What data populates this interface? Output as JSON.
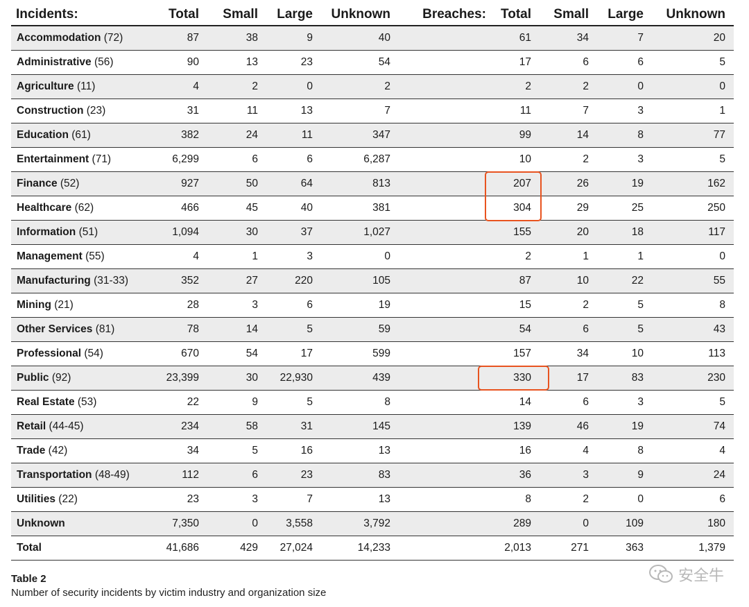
{
  "headers": {
    "incidents": "Incidents:",
    "total": "Total",
    "small": "Small",
    "large": "Large",
    "unknown": "Unknown",
    "breaches": "Breaches:",
    "b_total": "Total",
    "b_small": "Small",
    "b_large": "Large",
    "b_unknown": "Unknown"
  },
  "rows": [
    {
      "industry": "Accommodation",
      "code": "(72)",
      "inc": [
        "87",
        "38",
        "9",
        "40"
      ],
      "br": [
        "61",
        "34",
        "7",
        "20"
      ]
    },
    {
      "industry": "Administrative",
      "code": "(56)",
      "inc": [
        "90",
        "13",
        "23",
        "54"
      ],
      "br": [
        "17",
        "6",
        "6",
        "5"
      ]
    },
    {
      "industry": "Agriculture",
      "code": "(11)",
      "inc": [
        "4",
        "2",
        "0",
        "2"
      ],
      "br": [
        "2",
        "2",
        "0",
        "0"
      ]
    },
    {
      "industry": "Construction",
      "code": "(23)",
      "inc": [
        "31",
        "11",
        "13",
        "7"
      ],
      "br": [
        "11",
        "7",
        "3",
        "1"
      ]
    },
    {
      "industry": "Education",
      "code": "(61)",
      "inc": [
        "382",
        "24",
        "11",
        "347"
      ],
      "br": [
        "99",
        "14",
        "8",
        "77"
      ]
    },
    {
      "industry": "Entertainment",
      "code": "(71)",
      "inc": [
        "6,299",
        "6",
        "6",
        "6,287"
      ],
      "br": [
        "10",
        "2",
        "3",
        "5"
      ]
    },
    {
      "industry": "Finance",
      "code": "(52)",
      "inc": [
        "927",
        "50",
        "64",
        "813"
      ],
      "br": [
        "207",
        "26",
        "19",
        "162"
      ]
    },
    {
      "industry": "Healthcare",
      "code": "(62)",
      "inc": [
        "466",
        "45",
        "40",
        "381"
      ],
      "br": [
        "304",
        "29",
        "25",
        "250"
      ]
    },
    {
      "industry": "Information",
      "code": "(51)",
      "inc": [
        "1,094",
        "30",
        "37",
        "1,027"
      ],
      "br": [
        "155",
        "20",
        "18",
        "117"
      ]
    },
    {
      "industry": "Management",
      "code": "(55)",
      "inc": [
        "4",
        "1",
        "3",
        "0"
      ],
      "br": [
        "2",
        "1",
        "1",
        "0"
      ]
    },
    {
      "industry": "Manufacturing",
      "code": "(31-33)",
      "inc": [
        "352",
        "27",
        "220",
        "105"
      ],
      "br": [
        "87",
        "10",
        "22",
        "55"
      ]
    },
    {
      "industry": "Mining",
      "code": "(21)",
      "inc": [
        "28",
        "3",
        "6",
        "19"
      ],
      "br": [
        "15",
        "2",
        "5",
        "8"
      ]
    },
    {
      "industry": "Other Services",
      "code": "(81)",
      "inc": [
        "78",
        "14",
        "5",
        "59"
      ],
      "br": [
        "54",
        "6",
        "5",
        "43"
      ]
    },
    {
      "industry": "Professional",
      "code": "(54)",
      "inc": [
        "670",
        "54",
        "17",
        "599"
      ],
      "br": [
        "157",
        "34",
        "10",
        "113"
      ]
    },
    {
      "industry": "Public",
      "code": "(92)",
      "inc": [
        "23,399",
        "30",
        "22,930",
        "439"
      ],
      "br": [
        "330",
        "17",
        "83",
        "230"
      ]
    },
    {
      "industry": "Real Estate",
      "code": "(53)",
      "inc": [
        "22",
        "9",
        "5",
        "8"
      ],
      "br": [
        "14",
        "6",
        "3",
        "5"
      ]
    },
    {
      "industry": "Retail",
      "code": "(44-45)",
      "inc": [
        "234",
        "58",
        "31",
        "145"
      ],
      "br": [
        "139",
        "46",
        "19",
        "74"
      ]
    },
    {
      "industry": "Trade",
      "code": "(42)",
      "inc": [
        "34",
        "5",
        "16",
        "13"
      ],
      "br": [
        "16",
        "4",
        "8",
        "4"
      ]
    },
    {
      "industry": "Transportation",
      "code": "(48-49)",
      "inc": [
        "112",
        "6",
        "23",
        "83"
      ],
      "br": [
        "36",
        "3",
        "9",
        "24"
      ]
    },
    {
      "industry": "Utilities",
      "code": "(22)",
      "inc": [
        "23",
        "3",
        "7",
        "13"
      ],
      "br": [
        "8",
        "2",
        "0",
        "6"
      ]
    },
    {
      "industry": "Unknown",
      "code": "",
      "inc": [
        "7,350",
        "0",
        "3,558",
        "3,792"
      ],
      "br": [
        "289",
        "0",
        "109",
        "180"
      ]
    },
    {
      "industry": "Total",
      "code": "",
      "inc": [
        "41,686",
        "429",
        "27,024",
        "14,233"
      ],
      "br": [
        "2,013",
        "271",
        "363",
        "1,379"
      ]
    }
  ],
  "caption": {
    "title": "Table 2",
    "subtitle": "Number of security incidents by victim industry and organization size"
  },
  "watermark": {
    "text": "安全牛",
    "icon": "wechat-icon"
  },
  "colors": {
    "highlight": "#e8531f",
    "row_shade": "#ececec"
  }
}
